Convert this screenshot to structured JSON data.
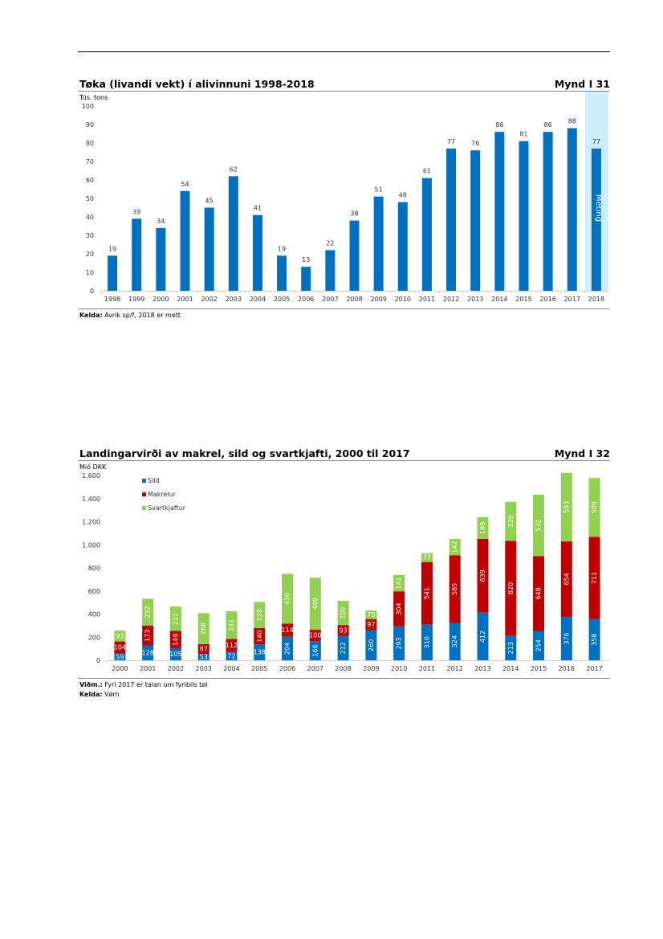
{
  "page": {},
  "figures": [
    {
      "title": "Tøka (livandi vekt) í alivinnuni 1998-2018",
      "figure_number": "Mynd I 31",
      "source_label": "Kelda:",
      "source_text": "Avrik sp/f, 2018 er mett"
    },
    {
      "title": "Landingarvirði av makrel, sild og svartkjafti, 2000 til 2017",
      "figure_number": "Mynd I 32",
      "note_label": "Viðm.:",
      "note_text": "Fyri 2017 er talan um fyribils tøl",
      "source_label": "Kelda:",
      "source_text": "Vørn"
    }
  ],
  "chart_data": [
    {
      "type": "bar",
      "title": "Tøka (livandi vekt) í alivinnuni 1998-2018",
      "ylabel": "Tús. tons",
      "xlabel": "",
      "ylim": [
        0,
        100
      ],
      "yticks": [
        0,
        10,
        20,
        30,
        40,
        50,
        60,
        70,
        80,
        90,
        100
      ],
      "ytick_labels": [
        "0",
        "10",
        "20",
        "30",
        "40",
        "50",
        "60",
        "70",
        "80",
        "90",
        "100"
      ],
      "categories": [
        "1998",
        "1999",
        "2000",
        "2001",
        "2002",
        "2003",
        "2004",
        "2005",
        "2006",
        "2007",
        "2008",
        "2009",
        "2010",
        "2011",
        "2012",
        "2013",
        "2014",
        "2015",
        "2016",
        "2017",
        "2018"
      ],
      "values": [
        19,
        39,
        34,
        54,
        45,
        62,
        41,
        19,
        13,
        22,
        38,
        51,
        48,
        61,
        77,
        76,
        86,
        81,
        86,
        88,
        77
      ],
      "data_labels": [
        "19",
        "39",
        "34",
        "54",
        "45",
        "62",
        "41",
        "19",
        "13",
        "22",
        "38",
        "51",
        "48",
        "61",
        "77",
        "76",
        "86",
        "81",
        "86",
        "88",
        "77"
      ],
      "highlight": {
        "category": "2018",
        "label": "Meting"
      },
      "grid": false,
      "colors": {
        "bar": "#0070c0",
        "highlight_band": "#cdeefa",
        "text": "#333344",
        "highlight_text": "#ffffff"
      }
    },
    {
      "type": "bar",
      "stacked": true,
      "title": "Landingarvirði av makrel, sild og svartkjafti, 2000 til 2017",
      "ylabel": "Mió DKK",
      "xlabel": "",
      "ylim": [
        0,
        1600
      ],
      "yticks": [
        0,
        200,
        400,
        600,
        800,
        1000,
        1200,
        1400,
        1600
      ],
      "ytick_labels": [
        "0",
        "200",
        "400",
        "600",
        "800",
        "1.000",
        "1.200",
        "1.400",
        "1.600"
      ],
      "categories": [
        "2000",
        "2001",
        "2002",
        "2003",
        "2004",
        "2005",
        "2006",
        "2007",
        "2008",
        "2009",
        "2010",
        "2011",
        "2012",
        "2013",
        "2014",
        "2015",
        "2016",
        "2017"
      ],
      "series": [
        {
          "name": "Sild",
          "color": "#0070c0",
          "values": [
            59,
            128,
            105,
            53,
            72,
            138,
            204,
            166,
            212,
            260,
            293,
            310,
            324,
            412,
            213,
            254,
            376,
            358
          ]
        },
        {
          "name": "Makrelur",
          "color": "#c00000",
          "values": [
            104,
            173,
            149,
            87,
            112,
            140,
            114,
            100,
            93,
            97,
            304,
            541,
            585,
            639,
            820,
            648,
            654,
            711
          ]
        },
        {
          "name": "Svartkjaftur",
          "color": "#92d050",
          "values": [
            93,
            232,
            211,
            268,
            241,
            228,
            430,
            449,
            209,
            75,
            142,
            77,
            142,
            189,
            339,
            532,
            593,
            509
          ]
        }
      ],
      "legend_position": "top-left",
      "grid": false,
      "data_label_color": "#ffffff"
    }
  ]
}
